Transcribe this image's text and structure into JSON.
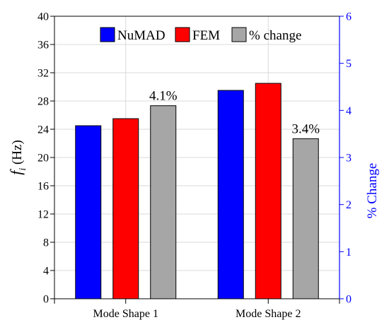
{
  "chart_data": {
    "type": "bar",
    "categories": [
      "Mode Shape 1",
      "Mode Shape 2"
    ],
    "series": [
      {
        "name": "NuMAD",
        "axis": "left",
        "values": [
          24.5,
          29.5
        ],
        "color": "#0000ff"
      },
      {
        "name": "FEM",
        "axis": "left",
        "values": [
          25.5,
          30.5
        ],
        "color": "#ff0000"
      },
      {
        "name": "% change",
        "axis": "right",
        "values": [
          4.1,
          3.4
        ],
        "color": "#a6a6a6"
      }
    ],
    "data_labels": [
      {
        "series": "% change",
        "category": "Mode Shape 1",
        "text": "4.1%"
      },
      {
        "series": "% change",
        "category": "Mode Shape 2",
        "text": "3.4%"
      }
    ],
    "ylabel_italic": "f",
    "ylabel_sub": "i",
    "ylabel_rest": " (Hz)",
    "y2label": "% Change",
    "ylim": [
      0,
      40
    ],
    "yticks": [
      0,
      4,
      8,
      12,
      16,
      20,
      24,
      28,
      32,
      36,
      40
    ],
    "y2lim": [
      0,
      6
    ],
    "y2ticks": [
      0,
      1,
      2,
      3,
      4,
      5,
      6
    ],
    "y2_color": "#0000ff",
    "grid": true,
    "legend": "top-center"
  }
}
